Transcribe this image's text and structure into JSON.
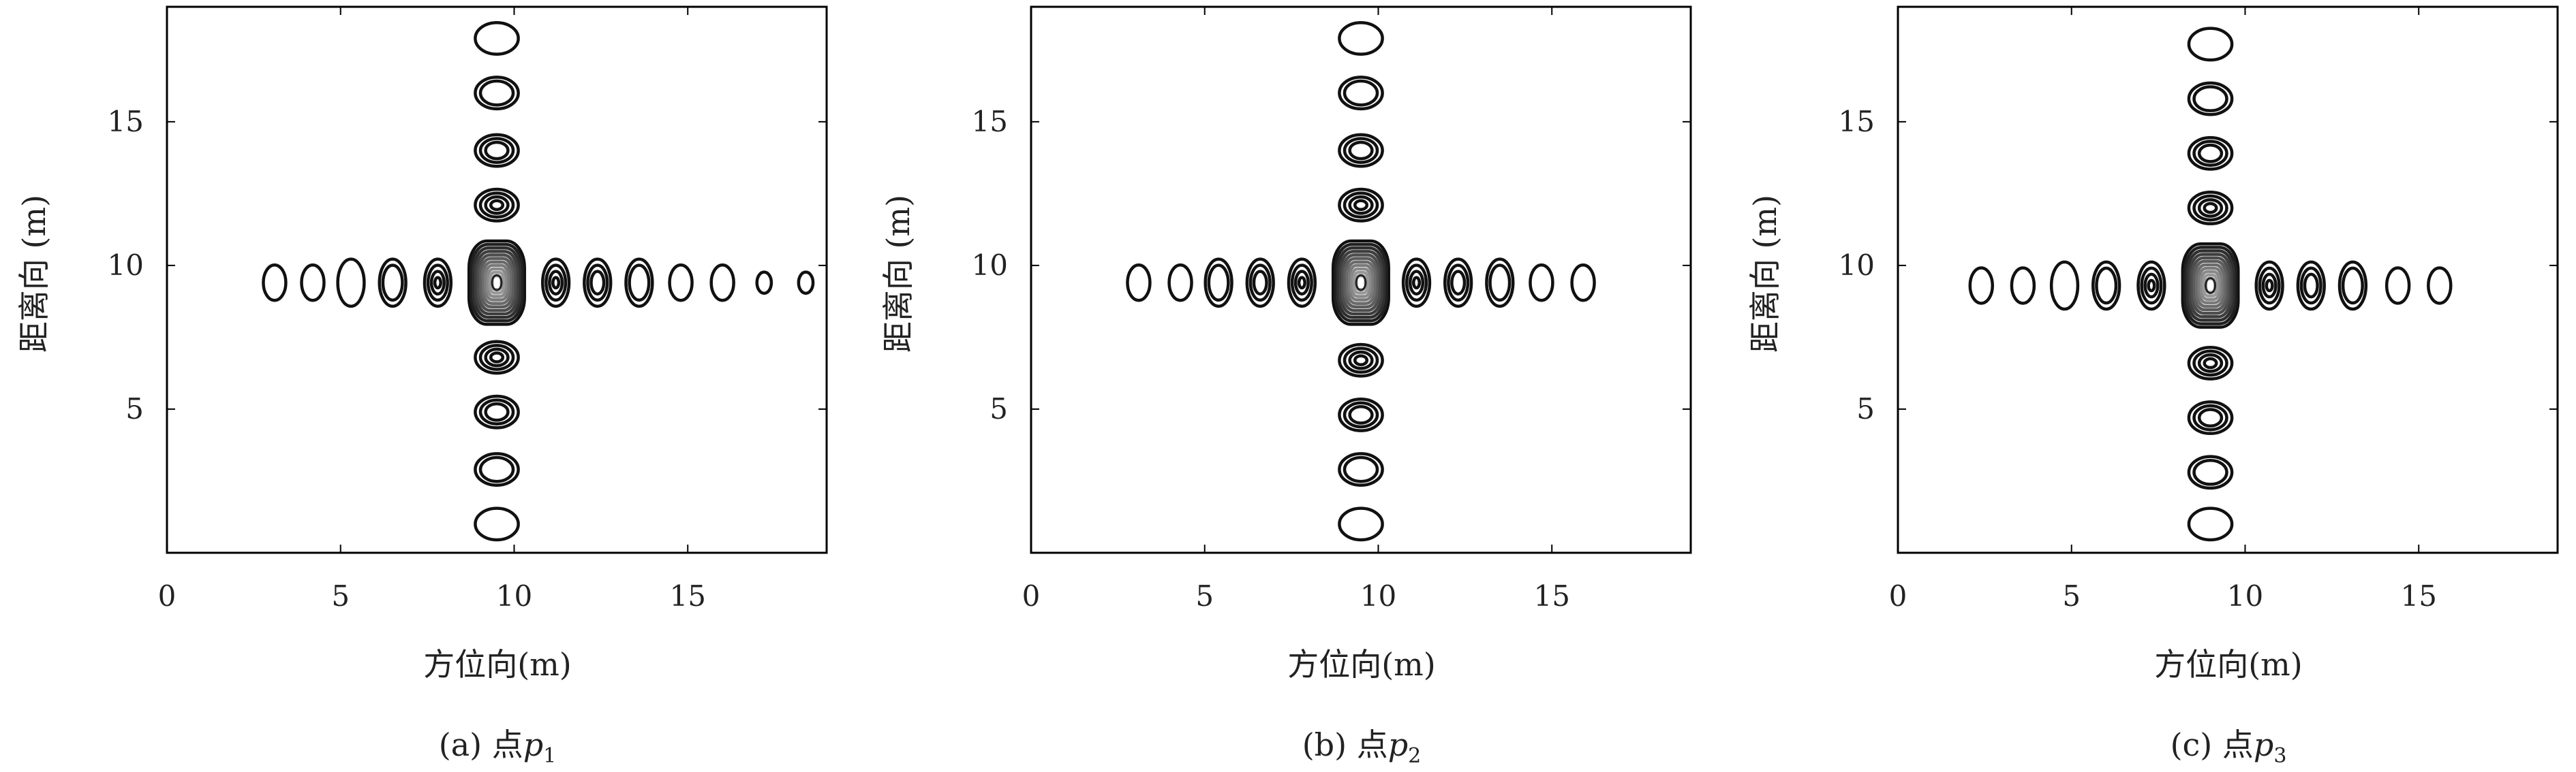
{
  "chart_data": [
    {
      "type": "contour",
      "caption": "(a) 点",
      "caption_var": "p",
      "caption_sub": "1",
      "xlabel": "方位向(m)",
      "ylabel": "距离向 (m)",
      "xlim": [
        0,
        19
      ],
      "ylim": [
        0,
        19
      ],
      "xticks": [
        "0",
        "5",
        "10",
        "15"
      ],
      "yticks": [
        "5",
        "10",
        "15"
      ],
      "peak": [
        9.5,
        9.4
      ],
      "horizontal_sidelobes": [
        3.1,
        4.2,
        5.3,
        6.5,
        7.8,
        11.2,
        12.4,
        13.6,
        14.8,
        16.0,
        17.2,
        18.4
      ],
      "vertical_sidelobes": [
        1.0,
        2.9,
        4.9,
        6.8,
        12.1,
        14.0,
        16.0,
        17.9
      ]
    },
    {
      "type": "contour",
      "caption": "(b) 点",
      "caption_var": "p",
      "caption_sub": "2",
      "xlabel": "方位向(m)",
      "ylabel": "距离向 (m)",
      "xlim": [
        0,
        19
      ],
      "ylim": [
        0,
        19
      ],
      "xticks": [
        "0",
        "5",
        "10",
        "15"
      ],
      "yticks": [
        "5",
        "10",
        "15"
      ],
      "peak": [
        9.5,
        9.4
      ],
      "horizontal_sidelobes": [
        3.1,
        4.3,
        5.4,
        6.6,
        7.8,
        11.1,
        12.3,
        13.5,
        14.7,
        15.9
      ],
      "vertical_sidelobes": [
        1.0,
        2.9,
        4.8,
        6.7,
        12.1,
        14.0,
        16.0,
        17.9
      ]
    },
    {
      "type": "contour",
      "caption": "(c) 点",
      "caption_var": "p",
      "caption_sub": "3",
      "xlabel": "方位向(m)",
      "ylabel": "距离向 (m)",
      "xlim": [
        0,
        19
      ],
      "ylim": [
        0,
        19
      ],
      "xticks": [
        "0",
        "5",
        "10",
        "15"
      ],
      "yticks": [
        "5",
        "10",
        "15"
      ],
      "peak": [
        9.0,
        9.3
      ],
      "horizontal_sidelobes": [
        2.4,
        3.6,
        4.8,
        6.0,
        7.3,
        10.7,
        11.9,
        13.1,
        14.4,
        15.6
      ],
      "vertical_sidelobes": [
        1.0,
        2.8,
        4.7,
        6.6,
        12.0,
        13.9,
        15.8,
        17.7
      ]
    }
  ]
}
